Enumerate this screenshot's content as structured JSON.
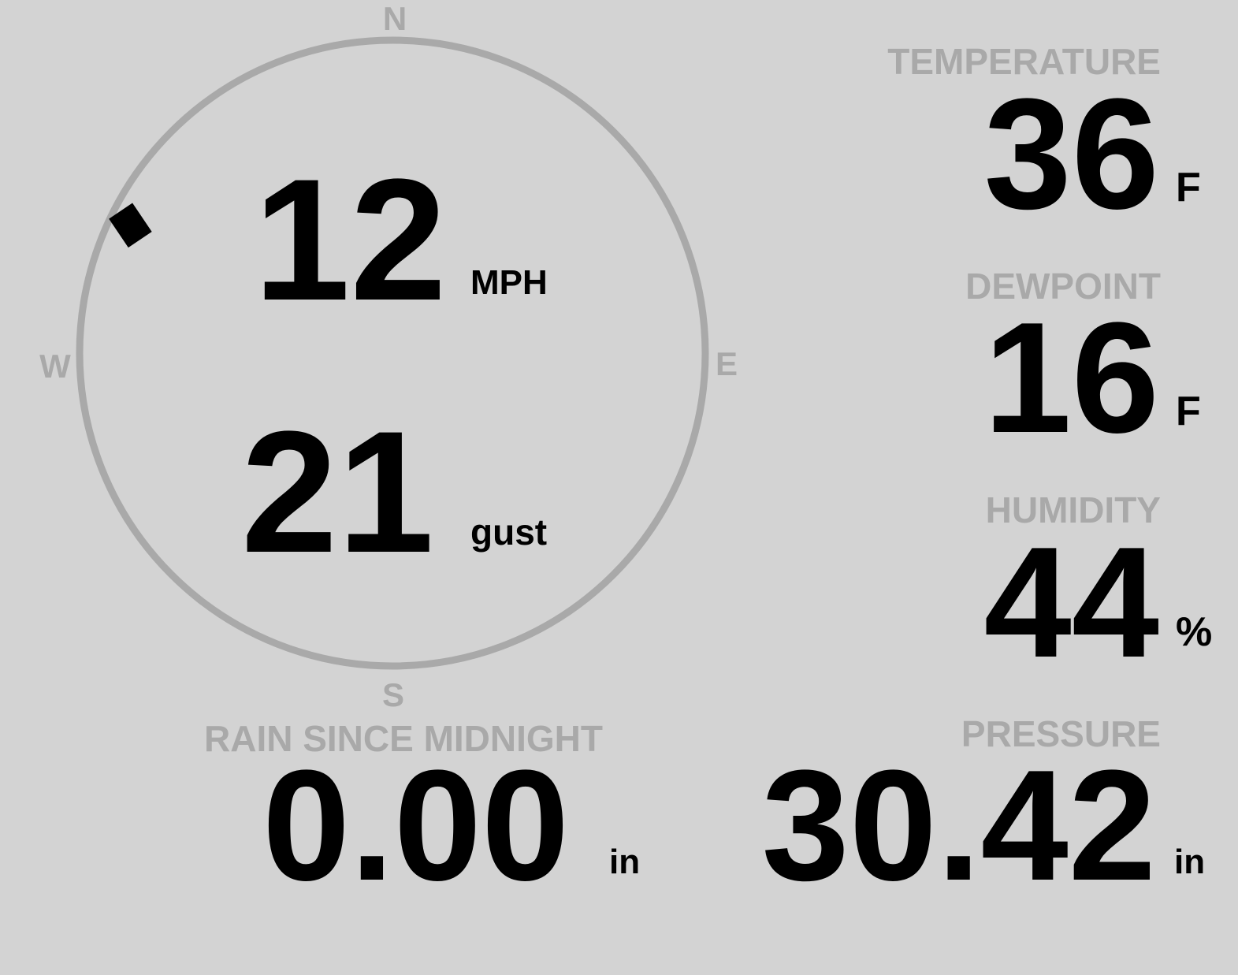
{
  "compass": {
    "north": "N",
    "south": "S",
    "east": "E",
    "west": "W",
    "wind_direction_deg": 296,
    "ring_color": "#a9a9a9",
    "marker_color": "#000000"
  },
  "wind": {
    "speed": "12",
    "speed_unit": "MPH",
    "gust": "21",
    "gust_unit": "gust"
  },
  "temperature": {
    "label": "TEMPERATURE",
    "value": "36",
    "unit": "F"
  },
  "dewpoint": {
    "label": "DEWPOINT",
    "value": "16",
    "unit": "F"
  },
  "humidity": {
    "label": "HUMIDITY",
    "value": "44",
    "unit": "%"
  },
  "pressure": {
    "label": "PRESSURE",
    "value": "30.42",
    "unit": "in"
  },
  "rain": {
    "label": "RAIN SINCE MIDNIGHT",
    "value": "0.00",
    "unit": "in"
  },
  "colors": {
    "background": "#d3d3d3",
    "label": "#a9a9a9",
    "value": "#000000"
  }
}
